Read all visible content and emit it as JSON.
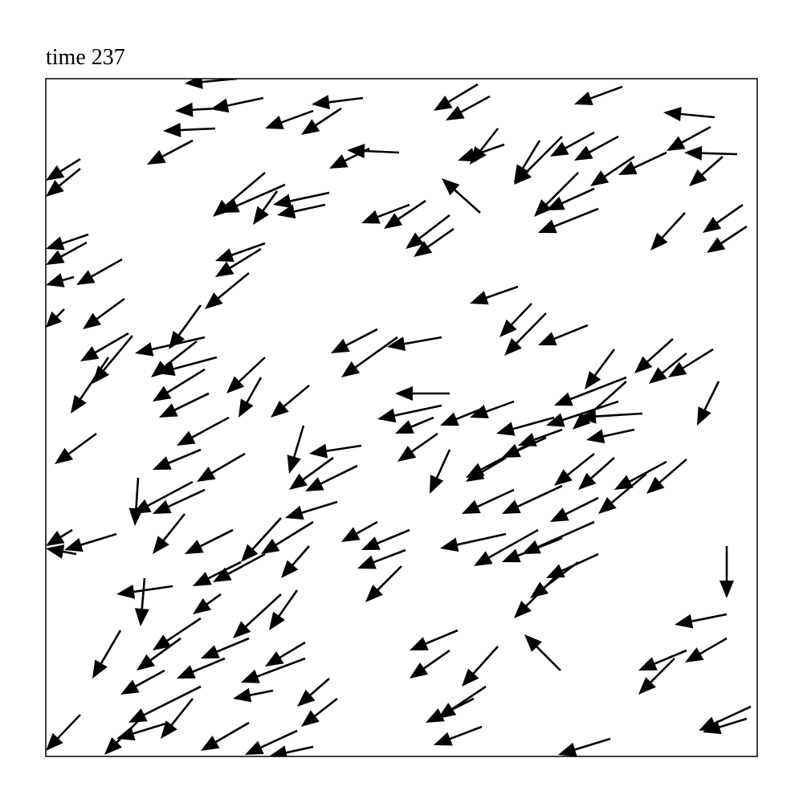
{
  "chart_data": {
    "type": "quiver",
    "title": "time 237",
    "color": "#000000",
    "xlim": [
      0,
      886
    ],
    "ylim": [
      0,
      844
    ],
    "x": [
      238,
      271,
      213,
      395,
      333,
      368,
      211,
      183,
      538,
      553,
      718,
      833,
      440,
      403,
      571,
      563,
      615,
      643,
      683,
      713,
      828,
      861,
      843,
      773,
      733,
      43,
      43,
      273,
      298,
      353,
      348,
      288,
      541,
      453,
      473,
      503,
      508,
      683,
      688,
      663,
      796,
      868,
      873,
      53,
      51,
      95,
      273,
      268,
      253,
      35,
      23,
      98,
      588,
      605,
      623,
      675,
      413,
      493,
      438,
      193,
      103,
      108,
      198,
      188,
      213,
      78,
      273,
      328,
      268,
      198,
      203,
      228,
      708,
      781,
      798,
      831,
      838,
      503,
      493,
      483,
      583,
      541,
      723,
      713,
      743,
      723,
      633,
      733,
      643,
      623,
      63,
      488,
      321,
      393,
      248,
      193,
      503,
      358,
      388,
      683,
      708,
      598,
      573,
      773,
      798,
      748,
      115,
      183,
      198,
      363,
      583,
      643,
      688,
      88,
      173,
      233,
      293,
      333,
      413,
      453,
      448,
      443,
      573,
      613,
      643,
      688,
      683,
      663,
      643,
      328,
      273,
      243,
      158,
      123,
      218,
      293,
      313,
      848,
      848,
      641,
      513,
      503,
      563,
      548,
      848,
      798,
      783,
      93,
      193,
      168,
      253,
      323,
      323,
      223,
      148,
      353,
      363,
      283,
      193,
      183,
      43,
      123,
      253,
      313,
      533,
      543,
      703,
      878,
      873,
      333,
      153,
      33,
      38
    ],
    "y": [
      844,
      820,
      807,
      820,
      804,
      807,
      782,
      767,
      837,
      822,
      834,
      796,
      752,
      757,
      762,
      782,
      767,
      772,
      777,
      772,
      784,
      750,
      747,
      752,
      747,
      744,
      732,
      727,
      712,
      702,
      687,
      704,
      677,
      687,
      692,
      674,
      657,
      707,
      682,
      727,
      677,
      687,
      660,
      650,
      640,
      619,
      639,
      632,
      602,
      597,
      557,
      570,
      585,
      564,
      552,
      537,
      532,
      522,
      522,
      562,
      527,
      524,
      522,
      517,
      497,
      497,
      497,
      462,
      472,
      482,
      452,
      422,
      507,
      520,
      502,
      507,
      467,
      452,
      437,
      422,
      442,
      432,
      472,
      442,
      427,
      467,
      422,
      407,
      407,
      397,
      402,
      402,
      412,
      387,
      377,
      382,
      382,
      372,
      362,
      377,
      372,
      387,
      372,
      367,
      370,
      352,
      347,
      342,
      332,
      317,
      332,
      337,
      322,
      277,
      302,
      282,
      297,
      292,
      292,
      282,
      257,
      237,
      277,
      282,
      272,
      252,
      292,
      242,
      232,
      262,
      252,
      242,
      212,
      222,
      202,
      202,
      207,
      262,
      177,
      107,
      157,
      132,
      137,
      87,
      147,
      132,
      122,
      157,
      172,
      147,
      147,
      142,
      122,
      122,
      107,
      97,
      72,
      82,
      87,
      72,
      52,
      52,
      42,
      32,
      72,
      37,
      22,
      62,
      47,
      12,
      42,
      282,
      252
    ],
    "u": [
      -65,
      -66,
      -52,
      -64,
      -60,
      -50,
      -65,
      -57,
      -55,
      -55,
      -60,
      -64,
      -65,
      -50,
      -58,
      -35,
      -32,
      -60,
      -55,
      -55,
      -55,
      -66,
      -42,
      -60,
      -55,
      -43,
      -43,
      -65,
      -80,
      -70,
      -60,
      -30,
      -48,
      -60,
      -52,
      -55,
      -50,
      -60,
      -75,
      -55,
      -43,
      -50,
      -50,
      -53,
      -51,
      -57,
      -62,
      -57,
      -55,
      -35,
      -23,
      -52,
      -60,
      -40,
      -52,
      -62,
      -58,
      -68,
      -70,
      -40,
      -60,
      -50,
      -87,
      -57,
      -75,
      -47,
      -48,
      -48,
      -28,
      -65,
      -62,
      -65,
      -37,
      -48,
      -47,
      -56,
      -27,
      -68,
      -80,
      -48,
      -55,
      -50,
      -90,
      -90,
      -80,
      -67,
      -72,
      -60,
      -55,
      -55,
      -52,
      -50,
      -18,
      -65,
      -60,
      -60,
      -25,
      -55,
      -65,
      -50,
      -45,
      -75,
      -50,
      -65,
      -50,
      -60,
      -4,
      -75,
      -65,
      -65,
      -65,
      -75,
      -60,
      -65,
      -40,
      -60,
      -50,
      -65,
      -45,
      -60,
      -60,
      -45,
      -82,
      -80,
      -75,
      -65,
      -90,
      -60,
      -60,
      -35,
      -65,
      -60,
      -70,
      -5,
      -35,
      -60,
      -35,
      0,
      -65,
      -45,
      -60,
      -50,
      -45,
      -60,
      -52,
      -60,
      -45,
      -35,
      -60,
      -55,
      -60,
      -50,
      -80,
      -60,
      -55,
      -40,
      -45,
      -50,
      -90,
      -40,
      -43,
      -50,
      -60,
      -65,
      -60,
      -60,
      -65,
      -65,
      -55,
      -55,
      -65,
      -33,
      -38
    ],
    "v": [
      -6,
      -14,
      -3,
      -8,
      -22,
      -33,
      -3,
      -30,
      -33,
      -30,
      -22,
      6,
      3,
      -25,
      -20,
      -45,
      -53,
      -60,
      -30,
      -30,
      -30,
      2,
      -37,
      -28,
      -37,
      -27,
      -35,
      -55,
      -35,
      -15,
      -13,
      -42,
      43,
      -23,
      -35,
      -42,
      -35,
      -27,
      -30,
      -55,
      -47,
      -35,
      -33,
      -18,
      -28,
      -32,
      -22,
      -35,
      -45,
      -10,
      -23,
      -38,
      -21,
      -42,
      -53,
      -25,
      -30,
      -12,
      -50,
      -55,
      -35,
      -60,
      -20,
      -45,
      -20,
      -70,
      -45,
      -40,
      -50,
      -40,
      -30,
      -35,
      -50,
      -43,
      -38,
      -35,
      -55,
      0,
      -17,
      -20,
      -20,
      -20,
      -35,
      -30,
      -5,
      -60,
      -20,
      -13,
      -20,
      -25,
      -38,
      -35,
      -60,
      -10,
      -35,
      -25,
      -55,
      -40,
      -32,
      -40,
      -40,
      -40,
      -30,
      -35,
      -43,
      -50,
      -60,
      -40,
      -30,
      -20,
      -30,
      -35,
      -30,
      -20,
      -50,
      -30,
      -55,
      -40,
      -25,
      -25,
      -23,
      -45,
      -18,
      -45,
      -30,
      -30,
      -40,
      -45,
      -60,
      -40,
      -35,
      -30,
      -10,
      -60,
      -25,
      -55,
      -50,
      -65,
      -13,
      45,
      -25,
      -35,
      -50,
      -40,
      -30,
      -25,
      -45,
      -60,
      -40,
      -40,
      -25,
      -30,
      -30,
      -25,
      -30,
      -35,
      -35,
      -10,
      -45,
      -50,
      -45,
      -50,
      -35,
      -30,
      -30,
      -23,
      -20,
      -30,
      -17,
      -12,
      -20,
      -20,
      7
    ]
  }
}
